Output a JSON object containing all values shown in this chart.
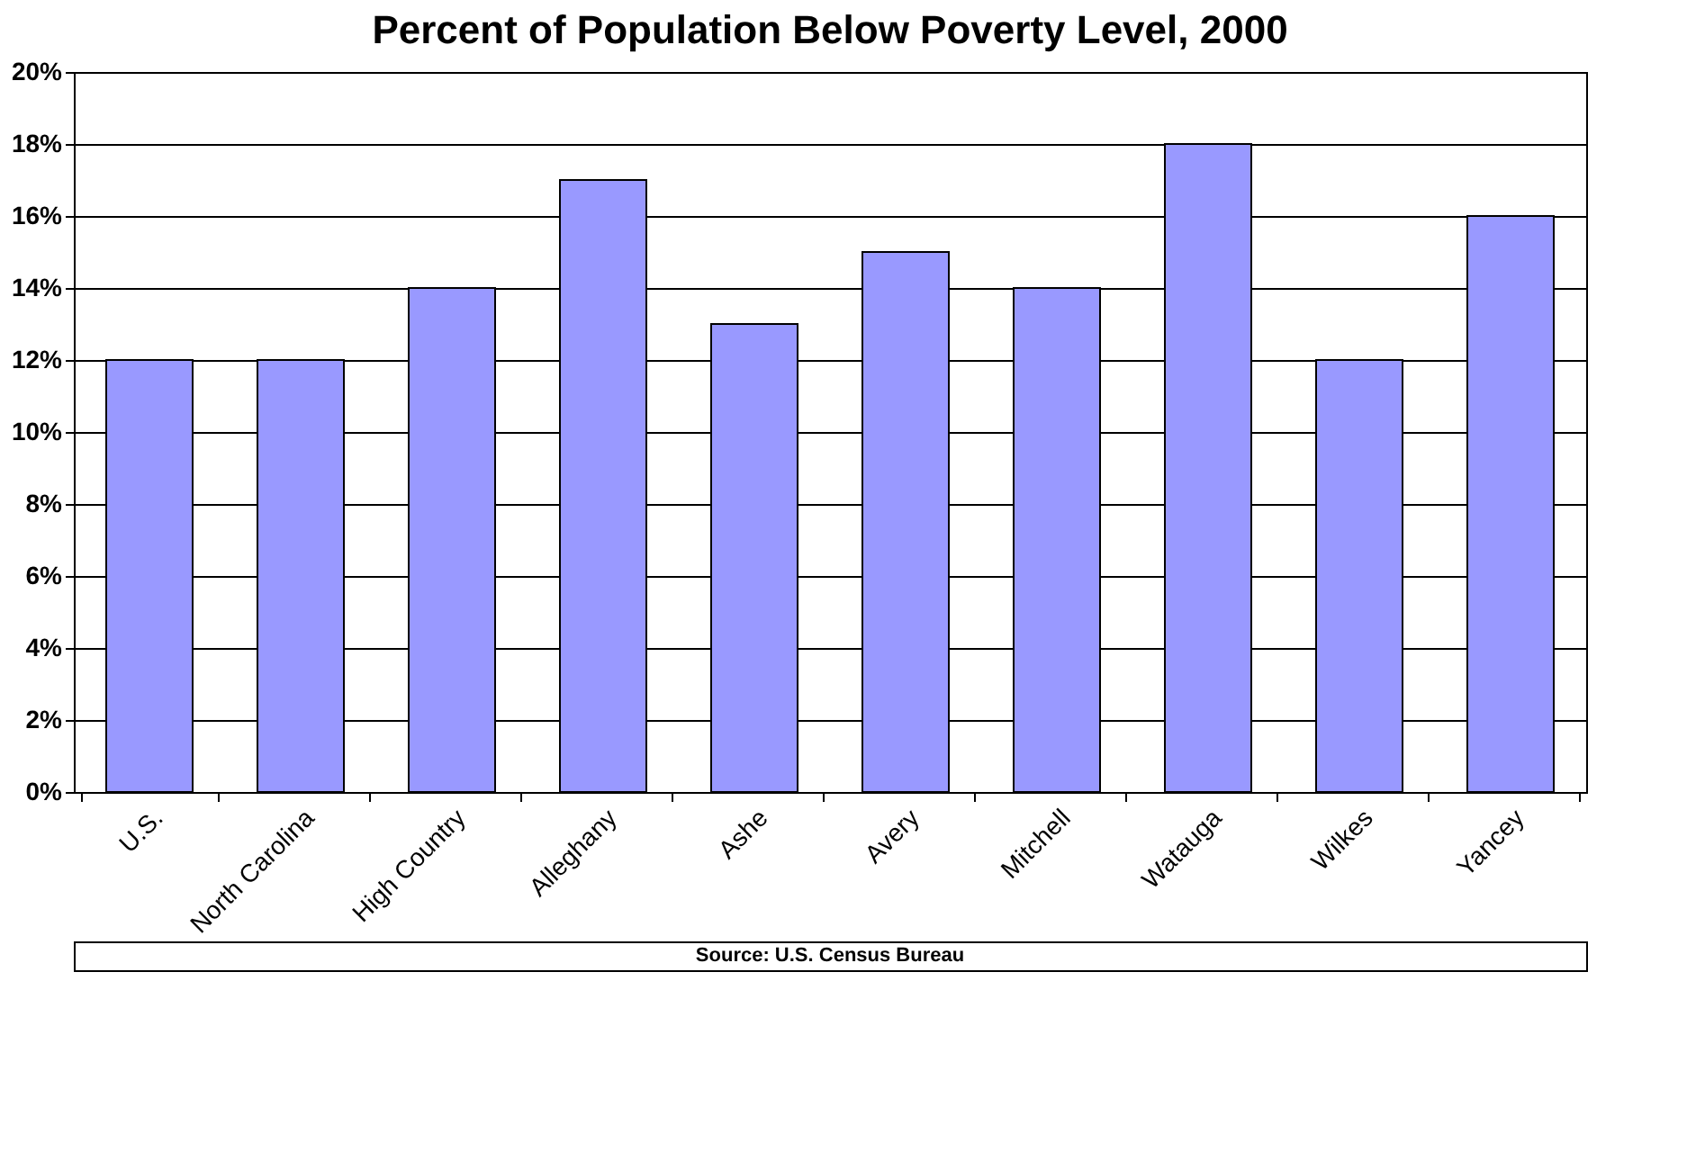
{
  "chart_data": {
    "type": "bar",
    "title": "Percent of Population Below Poverty Level, 2000",
    "categories": [
      "U.S.",
      "North Carolina",
      "High Country",
      "Alleghany",
      "Ashe",
      "Avery",
      "Mitchell",
      "Watauga",
      "Wilkes",
      "Yancey"
    ],
    "values": [
      12,
      12,
      14,
      17,
      13,
      15,
      14,
      18,
      12,
      16
    ],
    "color": "#9999ff",
    "ylim": [
      0,
      20
    ],
    "yticks": [
      {
        "value": 0,
        "label": "0%"
      },
      {
        "value": 2,
        "label": "2%"
      },
      {
        "value": 4,
        "label": "4%"
      },
      {
        "value": 6,
        "label": "6%"
      },
      {
        "value": 8,
        "label": "8%"
      },
      {
        "value": 10,
        "label": "10%"
      },
      {
        "value": 12,
        "label": "12%"
      },
      {
        "value": 14,
        "label": "14%"
      },
      {
        "value": 16,
        "label": "16%"
      },
      {
        "value": 18,
        "label": "18%"
      },
      {
        "value": 20,
        "label": "20%"
      }
    ],
    "grid": "y",
    "annotations": [
      "Source: U.S. Census Bureau"
    ]
  }
}
